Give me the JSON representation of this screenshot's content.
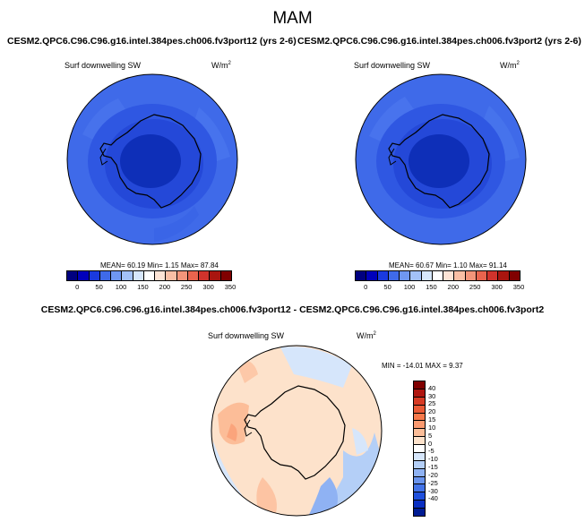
{
  "main_title": "MAM",
  "panels": [
    {
      "case_title": "CESM2.QPC6.C96.C96.g16.intel.384pes.ch006.fv3port12 (yrs 2-6)",
      "variable": "Surf downwelling SW",
      "unit_base": "W/m",
      "unit_exp": "2",
      "stats": "MEAN=  60.19  Min=   1.15  Max=   87.84"
    },
    {
      "case_title": "CESM2.QPC6.C96.C96.g16.intel.384pes.ch006.fv3port2 (yrs 2-6)",
      "variable": "Surf downwelling SW",
      "unit_base": "W/m",
      "unit_exp": "2",
      "stats": "MEAN=  60.67  Min=   1.10  Max=   91.14"
    }
  ],
  "colorbar_abs": {
    "colors": [
      "#00007f",
      "#0000bb",
      "#1a3adf",
      "#3f6ae9",
      "#6f97f1",
      "#a3c1f7",
      "#d6e6fb",
      "#ffffff",
      "#fde4d6",
      "#f9bfa5",
      "#f3957a",
      "#e9644e",
      "#d0332c",
      "#a9150f",
      "#800000"
    ],
    "ticks": [
      "0",
      "50",
      "100",
      "150",
      "200",
      "250",
      "300",
      "350"
    ]
  },
  "diff": {
    "title": "CESM2.QPC6.C96.C96.g16.intel.384pes.ch006.fv3port12 - CESM2.QPC6.C96.C96.g16.intel.384pes.ch006.fv3port2",
    "variable": "Surf downwelling SW",
    "unit_base": "W/m",
    "unit_exp": "2",
    "stats": "MIN = -14.01  MAX =   9.37"
  },
  "colorbar_diff": {
    "colors": [
      "#800000",
      "#b01610",
      "#d73a24",
      "#ea5a36",
      "#f7794b",
      "#fb9a70",
      "#fcbd98",
      "#fde2cb",
      "#ffffff",
      "#d6e6fb",
      "#b4cff7",
      "#8fb2f3",
      "#6a94ee",
      "#4373e8",
      "#2050dd",
      "#0a2fc2",
      "#001c93"
    ],
    "ticks": [
      "40",
      "30",
      "25",
      "20",
      "15",
      "10",
      "5",
      "0",
      "-5",
      "-10",
      "-15",
      "-20",
      "-25",
      "-30",
      "-40"
    ]
  }
}
